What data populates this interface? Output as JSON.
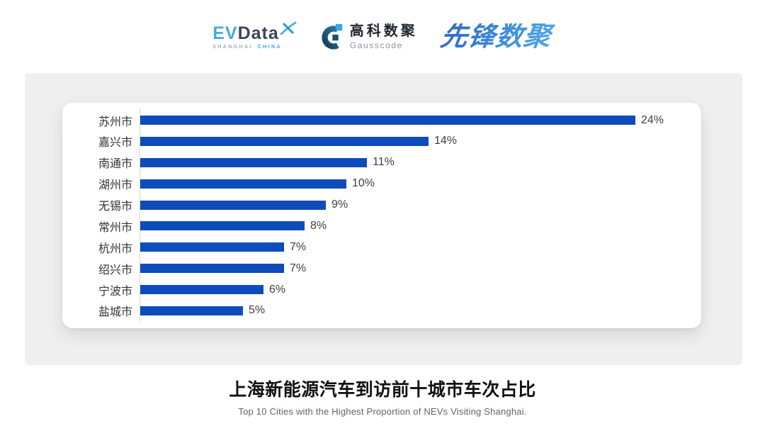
{
  "header": {
    "evdata": {
      "ev": "EV",
      "data": "Data",
      "sub_left": "SHANGHAI",
      "sub_right": "CHINA"
    },
    "gausscode": {
      "cn": "高科数聚",
      "en": "Gausscode"
    },
    "xianfeng": {
      "text": "先锋数聚"
    }
  },
  "chart_data": {
    "type": "bar",
    "orientation": "horizontal",
    "categories": [
      "苏州市",
      "嘉兴市",
      "南通市",
      "湖州市",
      "无锡市",
      "常州市",
      "杭州市",
      "绍兴市",
      "宁波市",
      "盐城市"
    ],
    "values": [
      24,
      14,
      11,
      10,
      9,
      8,
      7,
      7,
      6,
      5
    ],
    "value_labels": [
      "24%",
      "14%",
      "11%",
      "10%",
      "9%",
      "8%",
      "7%",
      "7%",
      "6%",
      "5%"
    ],
    "unit": "%",
    "xlim": [
      0,
      24
    ],
    "grid": false,
    "legend": "none",
    "bar_color": "#0E4CBB",
    "title": "上海新能源汽车到访前十城市车次占比",
    "subtitle": "Top 10 Cities with the Highest Proportion of  NEVs Visiting Shanghai."
  },
  "colors": {
    "bar": "#0E4CBB",
    "panel_bg": "#EFEFEF",
    "card_bg": "#FFFFFF",
    "axis_line": "#D8D8D8",
    "category_text": "#333333",
    "value_text": "#3E3E3E",
    "title_text": "#111111",
    "subtitle_text": "#5F6368",
    "evdata_blue": "#47A9DC",
    "evdata_dark": "#3C4654",
    "gausscode_dark_blue": "#1B4F74",
    "gausscode_light_blue": "#39A5DB",
    "xianfeng_blue": "#3C82D6"
  }
}
